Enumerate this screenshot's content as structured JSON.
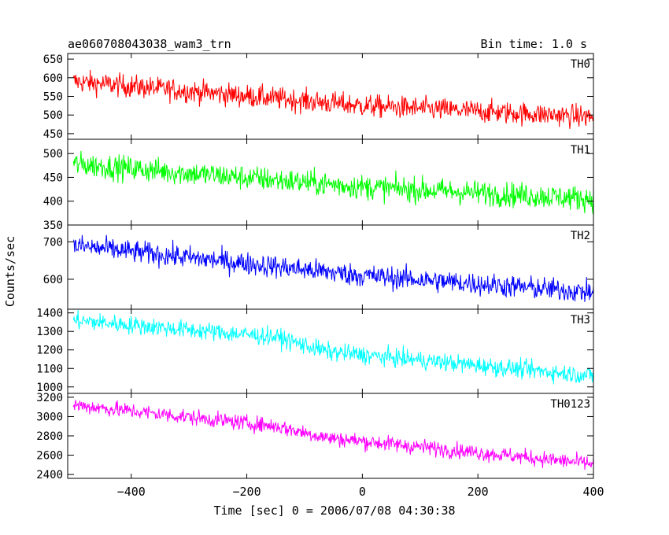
{
  "header": {
    "title": "ae060708043038_wam3_trn",
    "bin_time": "Bin time: 1.0 s"
  },
  "axes": {
    "ylabel": "Counts/sec",
    "xlabel": "Time [sec] 0 = 2006/07/08 04:30:38"
  },
  "chart_data": {
    "type": "line",
    "x_range": [
      -510,
      400
    ],
    "x_ticks": [
      -400,
      -200,
      0,
      200,
      400
    ],
    "bin_time_s": 1.0,
    "panels": [
      {
        "name": "TH0",
        "color": "#ff0000",
        "ylim": [
          435,
          665
        ],
        "yticks": [
          450,
          500,
          550,
          600,
          650
        ],
        "trend": [
          [
            -500,
            590
          ],
          [
            0,
            525
          ],
          [
            400,
            495
          ]
        ],
        "noise": 28
      },
      {
        "name": "TH1",
        "color": "#00ff00",
        "ylim": [
          350,
          530
        ],
        "yticks": [
          350,
          400,
          450,
          500
        ],
        "trend": [
          [
            -500,
            478
          ],
          [
            0,
            430
          ],
          [
            400,
            405
          ]
        ],
        "noise": 24
      },
      {
        "name": "TH2",
        "color": "#0000ff",
        "ylim": [
          520,
          745
        ],
        "yticks": [
          600,
          700
        ],
        "trend": [
          [
            -500,
            690
          ],
          [
            0,
            610
          ],
          [
            400,
            565
          ]
        ],
        "noise": 28
      },
      {
        "name": "TH3",
        "color": "#00ffff",
        "ylim": [
          965,
          1420
        ],
        "yticks": [
          1000,
          1100,
          1200,
          1300,
          1400
        ],
        "trend": [
          [
            -500,
            1360
          ],
          [
            -150,
            1270
          ],
          [
            -60,
            1190
          ],
          [
            400,
            1060
          ]
        ],
        "noise": 45
      },
      {
        "name": "TH0123",
        "color": "#ff00ff",
        "ylim": [
          2360,
          3240
        ],
        "yticks": [
          2400,
          2600,
          2800,
          3000,
          3200
        ],
        "trend": [
          [
            -500,
            3120
          ],
          [
            -150,
            2900
          ],
          [
            -60,
            2780
          ],
          [
            400,
            2510
          ]
        ],
        "noise": 75
      }
    ]
  }
}
